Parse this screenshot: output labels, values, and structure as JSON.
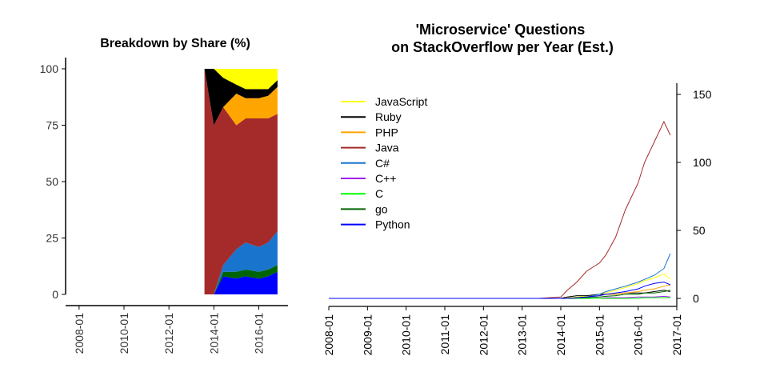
{
  "chart_data": [
    {
      "type": "area",
      "title": "Breakdown by Share (%)",
      "xlabel": "",
      "ylabel": "",
      "ylim": [
        0,
        100
      ],
      "yticks": [
        "0",
        "25",
        "50",
        "75",
        "100"
      ],
      "xticks": [
        "2008-01",
        "2010-01",
        "2012-01",
        "2014-01",
        "2016-01"
      ],
      "x": [
        "2013-08",
        "2014-01",
        "2014-06",
        "2015-01",
        "2015-06",
        "2016-01",
        "2016-06",
        "2016-11"
      ],
      "stacking_order_bottom_to_top": [
        "Python",
        "go",
        "C#",
        "Java",
        "PHP",
        "Ruby",
        "JavaScript"
      ],
      "series": [
        {
          "name": "Python",
          "color": "#0000ff",
          "values": [
            0,
            0,
            8,
            7,
            8,
            7,
            8,
            10
          ]
        },
        {
          "name": "go",
          "color": "#006400",
          "values": [
            0,
            0,
            2,
            3,
            3,
            3,
            3,
            3
          ]
        },
        {
          "name": "C#",
          "color": "#1874cd",
          "values": [
            0,
            0,
            3,
            10,
            12,
            11,
            12,
            15
          ]
        },
        {
          "name": "Java",
          "color": "#a52a2a",
          "values": [
            100,
            75,
            70,
            55,
            55,
            57,
            55,
            52
          ]
        },
        {
          "name": "PHP",
          "color": "#ffa500",
          "values": [
            0,
            0,
            0,
            14,
            9,
            9,
            10,
            12
          ]
        },
        {
          "name": "Ruby",
          "color": "#000000",
          "values": [
            0,
            25,
            13,
            4,
            4,
            4,
            3,
            3
          ]
        },
        {
          "name": "JavaScript",
          "color": "#ffff00",
          "values": [
            0,
            0,
            4,
            7,
            9,
            9,
            9,
            5
          ]
        }
      ]
    },
    {
      "type": "line",
      "title": "'Microservice' Questions\non StackOverflow per Year (Est.)",
      "xlabel": "",
      "ylabel": "",
      "ylim": [
        0,
        150
      ],
      "yticks": [
        "0",
        "50",
        "100",
        "150"
      ],
      "xticks": [
        "2008-01",
        "2009-01",
        "2010-01",
        "2011-01",
        "2012-01",
        "2013-01",
        "2014-01",
        "2015-01",
        "2016-01",
        "2017-01"
      ],
      "legend_position": "top-left",
      "x": [
        "2008-01",
        "2013-06",
        "2014-01",
        "2014-03",
        "2014-06",
        "2014-09",
        "2015-01",
        "2015-03",
        "2015-06",
        "2015-09",
        "2016-01",
        "2016-03",
        "2016-06",
        "2016-09",
        "2016-11"
      ],
      "series": [
        {
          "name": "JavaScript",
          "color": "#ffff00",
          "values": [
            0,
            0,
            0,
            0.5,
            1,
            1.5,
            3,
            4,
            6,
            8,
            11,
            13,
            15,
            18,
            14
          ]
        },
        {
          "name": "Ruby",
          "color": "#000000",
          "values": [
            0,
            0,
            0,
            1,
            2,
            2,
            3,
            3,
            3,
            4,
            4,
            4,
            5,
            6,
            5
          ]
        },
        {
          "name": "PHP",
          "color": "#ffa500",
          "values": [
            0,
            0,
            0,
            0,
            0.5,
            1,
            2,
            3,
            3,
            4,
            5,
            6,
            7,
            9,
            10
          ]
        },
        {
          "name": "Java",
          "color": "#a52a2a",
          "values": [
            0,
            0,
            1,
            6,
            12,
            20,
            26,
            32,
            45,
            65,
            85,
            100,
            115,
            130,
            120
          ]
        },
        {
          "name": "C#",
          "color": "#1874cd",
          "values": [
            0,
            0,
            0,
            0,
            0.5,
            1,
            3,
            5,
            7,
            9,
            12,
            14,
            17,
            22,
            33
          ]
        },
        {
          "name": "C++",
          "color": "#a020f0",
          "values": [
            0,
            0,
            0,
            0,
            0,
            0,
            0,
            0.5,
            0.5,
            0.5,
            1,
            1,
            1,
            1.5,
            1
          ]
        },
        {
          "name": "C",
          "color": "#00ff00",
          "values": [
            0,
            0,
            0,
            0,
            0,
            0,
            0,
            0,
            0,
            0,
            0,
            0.5,
            0.5,
            0.5,
            0.5
          ]
        },
        {
          "name": "go",
          "color": "#006400",
          "values": [
            0,
            0,
            0,
            0,
            0.3,
            0.5,
            1,
            1.5,
            2,
            3,
            3,
            4,
            4,
            5,
            6
          ]
        },
        {
          "name": "Python",
          "color": "#0000ff",
          "values": [
            0,
            0,
            0,
            0,
            0.5,
            1,
            2,
            3,
            4,
            5,
            7,
            9,
            11,
            12,
            10
          ]
        }
      ]
    }
  ]
}
